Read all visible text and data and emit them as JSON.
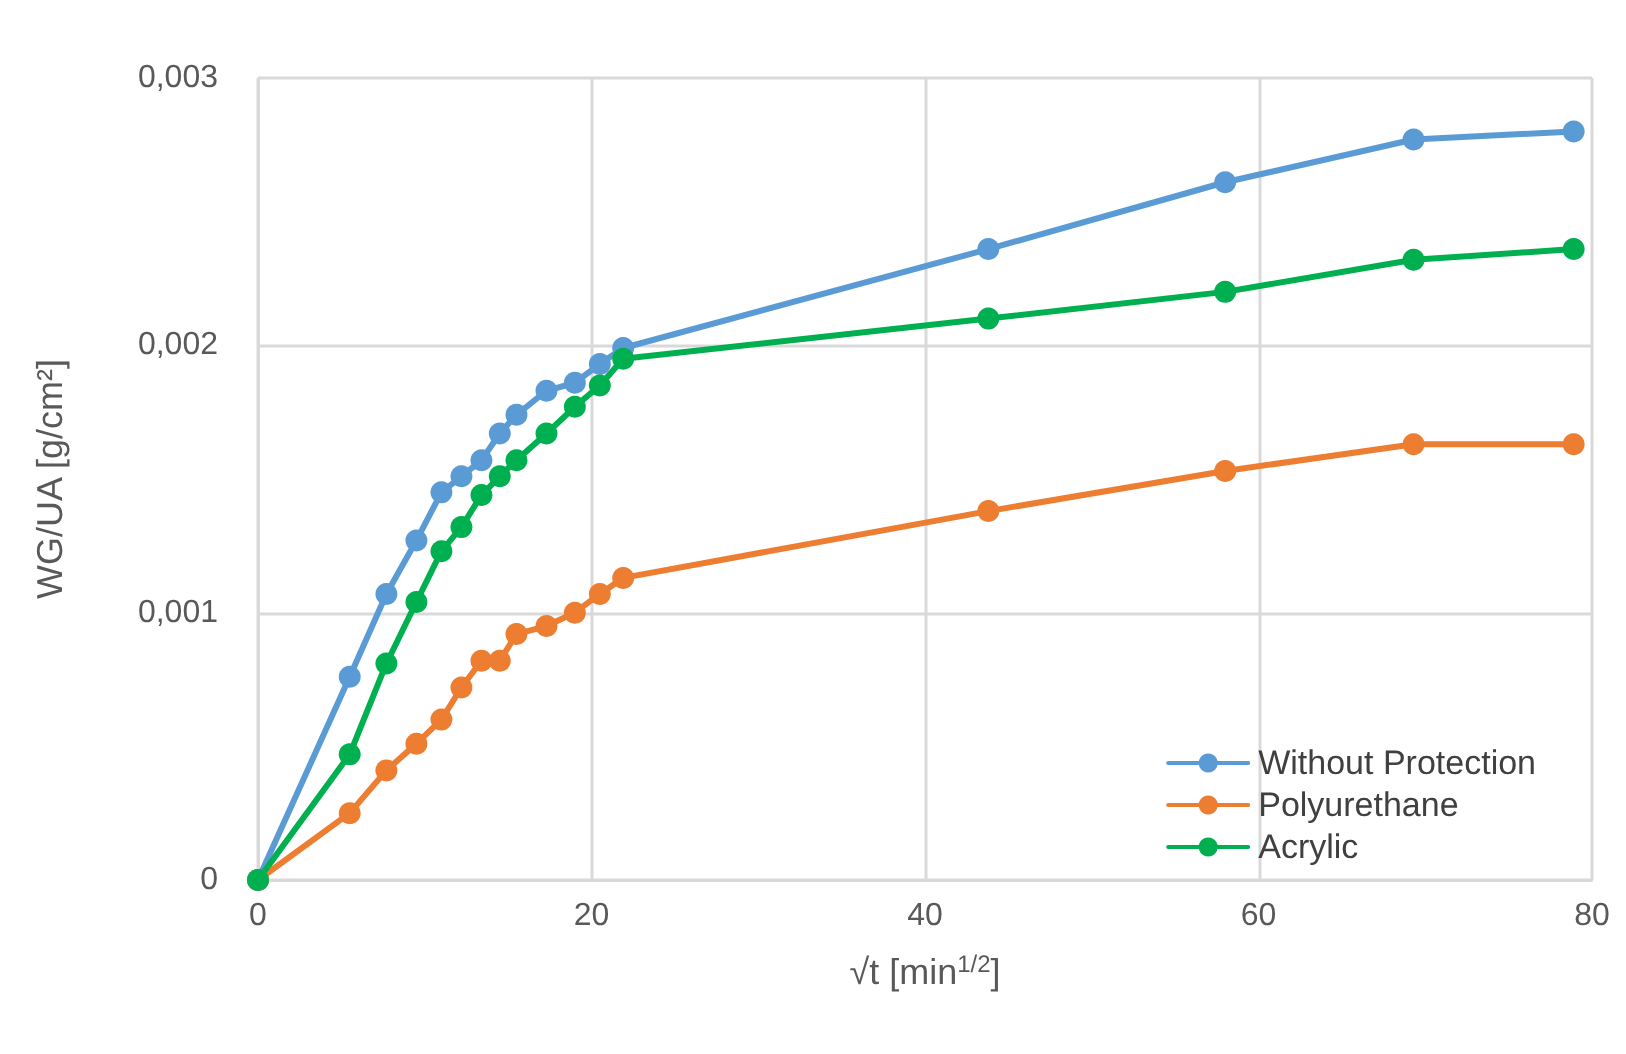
{
  "chart_data": {
    "type": "line",
    "xlabel": "√t [min$^{1/2}$]",
    "ylabel": "WG/UA [g/cm²]",
    "x": [
      0,
      5.5,
      7.7,
      9.5,
      11,
      12.2,
      13.4,
      14.5,
      15.5,
      17.3,
      19,
      20.5,
      21.9,
      43.8,
      58,
      69.3,
      78.9
    ],
    "series": [
      {
        "name": "Without Protection",
        "color": "#5b9bd5",
        "values": [
          0,
          0.00076,
          0.00107,
          0.00127,
          0.00145,
          0.00151,
          0.00157,
          0.00167,
          0.00174,
          0.00183,
          0.00186,
          0.00193,
          0.00199,
          0.00236,
          0.00261,
          0.00277,
          0.0028
        ]
      },
      {
        "name": "Polyurethane",
        "color": "#ed7d31",
        "values": [
          0,
          0.00025,
          0.00041,
          0.00051,
          0.0006,
          0.00072,
          0.00082,
          0.00082,
          0.00092,
          0.00095,
          0.001,
          0.00107,
          0.00113,
          0.00138,
          0.00153,
          0.00163,
          0.00163
        ]
      },
      {
        "name": "Acrylic",
        "color": "#00b050",
        "values": [
          0,
          0.00047,
          0.00081,
          0.00104,
          0.00123,
          0.00132,
          0.00144,
          0.00151,
          0.00157,
          0.00167,
          0.00177,
          0.00185,
          0.00195,
          0.0021,
          0.0022,
          0.00232,
          0.00236
        ]
      }
    ],
    "xlim": [
      0,
      80
    ],
    "xticks": [
      0,
      20,
      40,
      60,
      80
    ],
    "ylim": [
      0,
      0.003
    ],
    "yticks": [
      0,
      {
        "value": 0.001,
        "label": "0,001"
      },
      {
        "value": 0.002,
        "label": "0,002"
      },
      {
        "value": 0.003,
        "label": "0,003"
      }
    ],
    "grid": true,
    "legend": "bottom right",
    "marker": "circle",
    "line_style": "solid"
  }
}
